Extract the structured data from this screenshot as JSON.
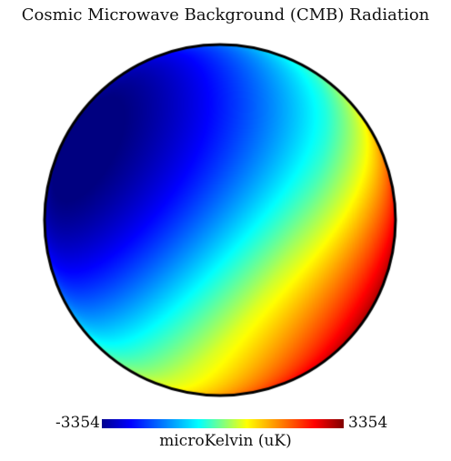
{
  "title": "Cosmic Microwave Background (CMB) Radiation",
  "colorbar": {
    "min_label": "-3354",
    "max_label": "3354",
    "unit_label": "microKelvin (uK)",
    "min": -3354,
    "max": 3354,
    "colormap": "jet"
  },
  "map": {
    "field": "CMB dipole temperature anisotropy",
    "pattern": "dipole",
    "projection": "orthographic",
    "cold_color": "#00008f",
    "hot_color": "#800000",
    "outline_color": "#000000"
  }
}
